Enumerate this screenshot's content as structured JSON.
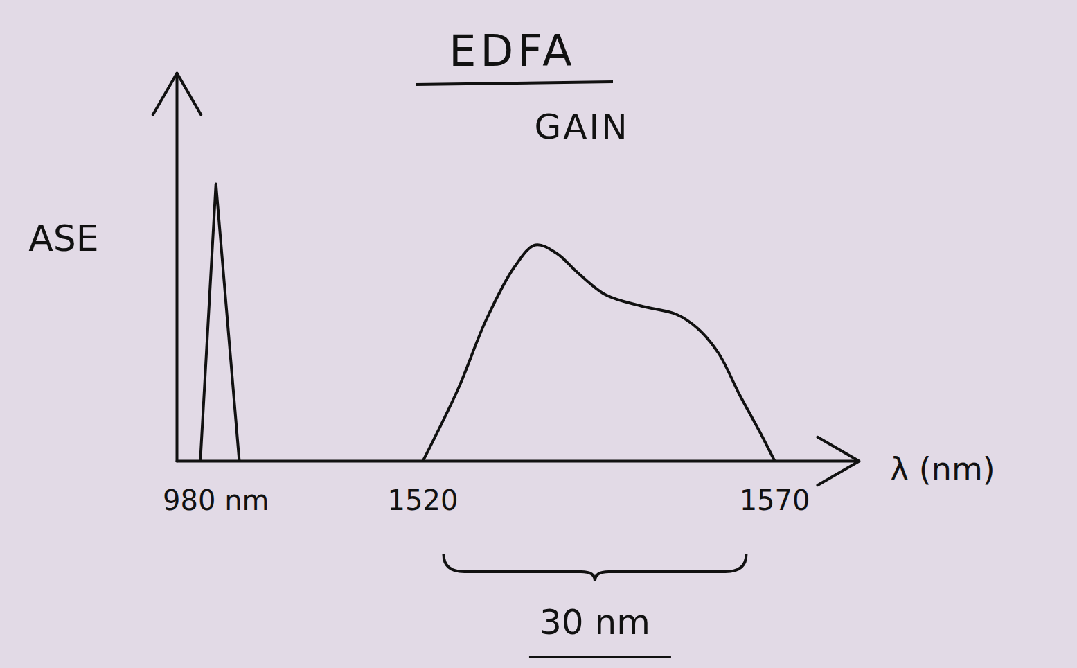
{
  "chart_data": {
    "type": "line",
    "title": "EDFA",
    "subtitle": "GAIN",
    "x_label": "λ (nm)",
    "y_label": "ASE",
    "xlim": [
      960,
      1582
    ],
    "ylim": [
      0,
      1.4
    ],
    "xticks": [
      {
        "value": 980,
        "label": "980 nm"
      },
      1520,
      1570
    ],
    "tick_labels": "x",
    "series": [
      {
        "x": [
          972,
          980,
          992
        ],
        "values": [
          0,
          1.0,
          0
        ],
        "color": "#111111"
      },
      {
        "x": [
          1520,
          1525,
          1529,
          1533,
          1536,
          1539,
          1542,
          1546,
          1551,
          1556,
          1559,
          1562,
          1565,
          1568,
          1570
        ],
        "values": [
          0,
          0.26,
          0.51,
          0.7,
          0.78,
          0.75,
          0.68,
          0.6,
          0.56,
          0.53,
          0.48,
          0.39,
          0.24,
          0.1,
          0
        ],
        "color": "#111111"
      }
    ],
    "annotations": [
      {
        "text": "30 nm",
        "x": [
          1523,
          1566
        ]
      }
    ]
  }
}
